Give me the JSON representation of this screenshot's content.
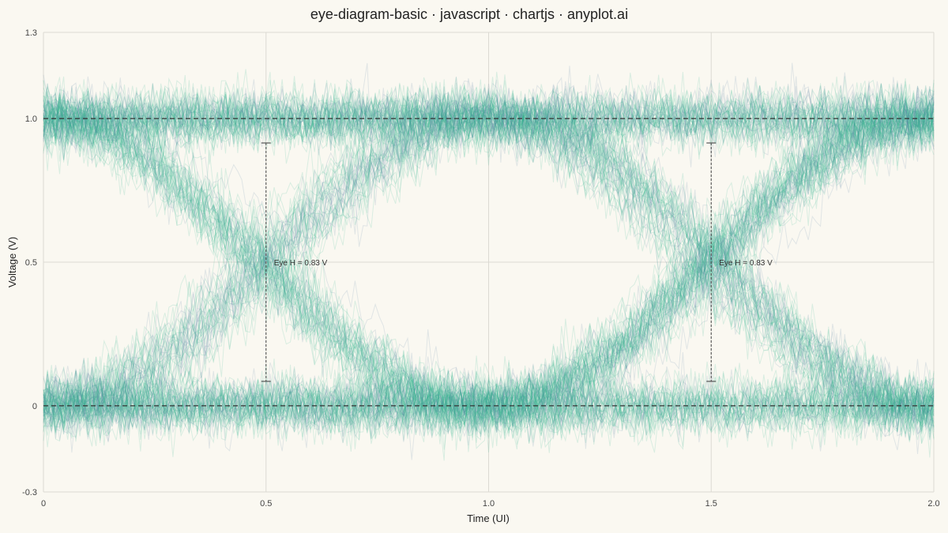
{
  "chart_data": {
    "type": "line",
    "title": "eye-diagram-basic · javascript · chartjs · anyplot.ai",
    "xlabel": "Time (UI)",
    "ylabel": "Voltage (V)",
    "xlim": [
      0,
      2.0
    ],
    "ylim": [
      -0.3,
      1.3
    ],
    "xticks": [
      {
        "value": 0,
        "label": "0"
      },
      {
        "value": 0.5,
        "label": "0.5"
      },
      {
        "value": 1.0,
        "label": "1.0"
      },
      {
        "value": 1.5,
        "label": "1.5"
      },
      {
        "value": 2.0,
        "label": "2.0"
      }
    ],
    "yticks": [
      {
        "value": -0.3,
        "label": "-0.3"
      },
      {
        "value": 0,
        "label": "0"
      },
      {
        "value": 0.5,
        "label": "0.5"
      },
      {
        "value": 1.0,
        "label": "1.0"
      },
      {
        "value": 1.3,
        "label": "1.3"
      }
    ],
    "grid": true,
    "logic_levels": [
      0,
      1.0
    ],
    "eye_crossings": [
      1.0
    ],
    "noise_sigma": 0.05,
    "trace_colors": [
      "#2FB58E",
      "#5C82A8"
    ],
    "reference_line_color": "#333333",
    "annotations": [
      {
        "x": 0.5,
        "y_top": 0.915,
        "y_bottom": 0.085,
        "text": "Eye H = 0.83 V"
      },
      {
        "x": 1.5,
        "y_top": 0.915,
        "y_bottom": 0.085,
        "text": "Eye H = 0.83 V"
      }
    ]
  }
}
